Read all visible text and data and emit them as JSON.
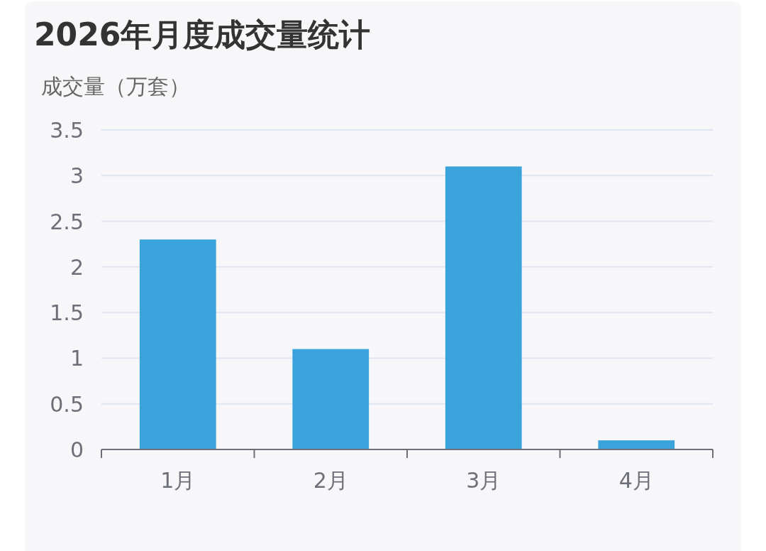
{
  "chart_data": {
    "type": "bar",
    "title": "2026年月度成交量统计",
    "ylabel": "成交量（万套）",
    "categories": [
      "1月",
      "2月",
      "3月",
      "4月"
    ],
    "values": [
      2.3,
      1.1,
      3.1,
      0.1
    ],
    "color": "#3aa3db",
    "ylim": [
      0,
      3.5
    ],
    "yticks": [
      0,
      0.5,
      1,
      1.5,
      2,
      2.5,
      3,
      3.5
    ],
    "grid": "y"
  }
}
